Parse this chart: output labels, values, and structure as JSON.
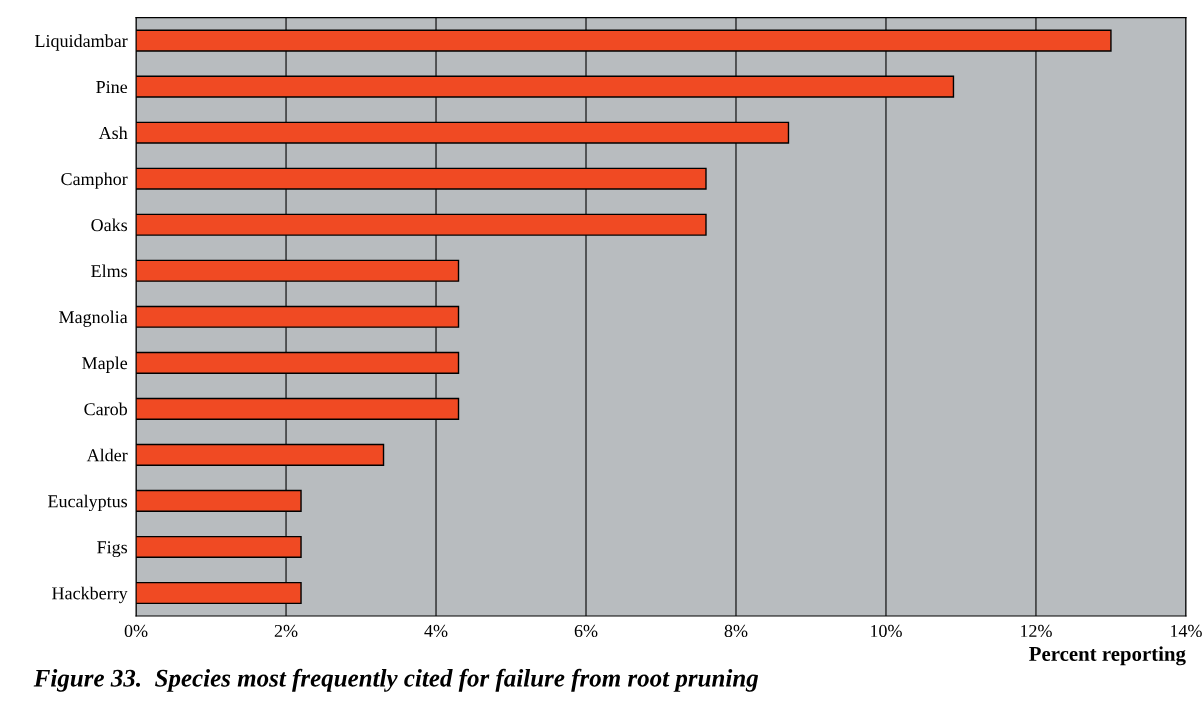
{
  "chart_data": {
    "type": "bar",
    "orientation": "horizontal",
    "title": "Figure 33.  Species most frequently cited for failure from root pruning",
    "xlabel": "Percent reporting",
    "categories": [
      "Liquidambar",
      "Pine",
      "Ash",
      "Camphor",
      "Oaks",
      "Elms",
      "Magnolia",
      "Maple",
      "Carob",
      "Alder",
      "Eucalyptus",
      "Figs",
      "Hackberry"
    ],
    "values": [
      13.0,
      10.9,
      8.7,
      7.6,
      7.6,
      4.3,
      4.3,
      4.3,
      4.3,
      3.3,
      2.2,
      2.2,
      2.2
    ],
    "color": "#f04a23",
    "xlim": [
      0,
      14
    ],
    "xticks": [
      {
        "value": 0,
        "label": "0%"
      },
      {
        "value": 2,
        "label": "2%"
      },
      {
        "value": 4,
        "label": "4%"
      },
      {
        "value": 6,
        "label": "6%"
      },
      {
        "value": 8,
        "label": "8%"
      },
      {
        "value": 10,
        "label": "10%"
      },
      {
        "value": 12,
        "label": "12%"
      },
      {
        "value": 14,
        "label": "14%"
      }
    ],
    "grid": "x"
  }
}
